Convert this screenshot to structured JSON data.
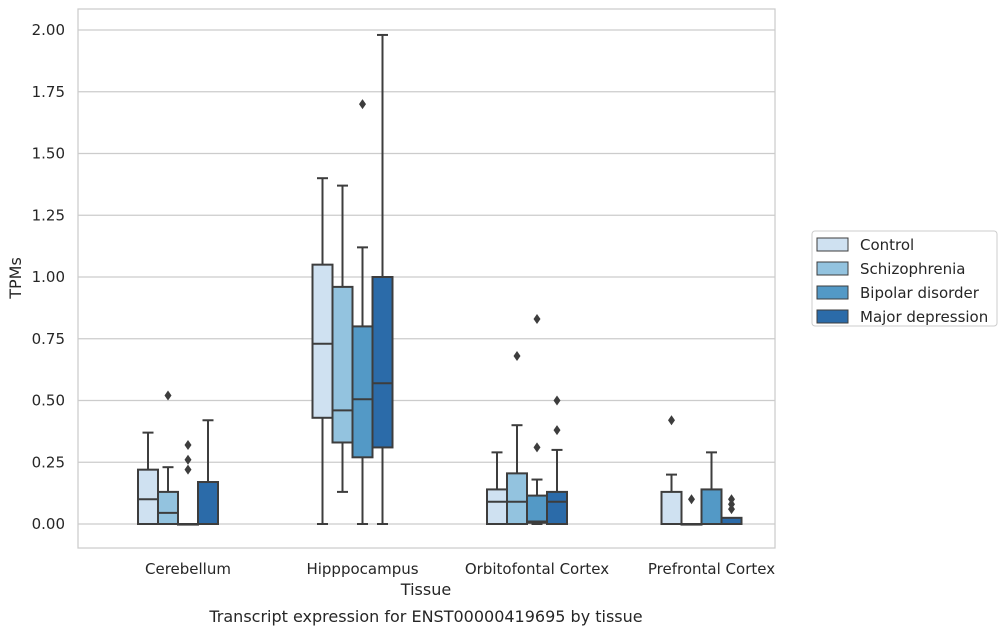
{
  "chart_data": {
    "type": "box",
    "caption": "Transcript expression for ENST00000419695 by tissue",
    "xlabel": "Tissue",
    "ylabel": "TPMs",
    "ylim": [
      -0.1,
      2.08
    ],
    "yticks": [
      "0.00",
      "0.25",
      "0.50",
      "0.75",
      "1.00",
      "1.25",
      "1.50",
      "1.75",
      "2.00"
    ],
    "grid": "horizontal",
    "legend_position": "right",
    "categories": [
      "Cerebellum",
      "Hipppocampus",
      "Orbitofontal Cortex",
      "Prefrontal Cortex"
    ],
    "series": [
      {
        "name": "Control",
        "color": "#cfe1f1",
        "boxes": [
          {
            "q1": 0.0,
            "median": 0.1,
            "q3": 0.22,
            "whisker_low": 0.0,
            "whisker_high": 0.37,
            "outliers": []
          },
          {
            "q1": 0.43,
            "median": 0.73,
            "q3": 1.05,
            "whisker_low": 0.0,
            "whisker_high": 1.4,
            "outliers": []
          },
          {
            "q1": 0.0,
            "median": 0.09,
            "q3": 0.14,
            "whisker_low": 0.0,
            "whisker_high": 0.29,
            "outliers": []
          },
          {
            "q1": 0.0,
            "median": 0.0,
            "q3": 0.13,
            "whisker_low": 0.0,
            "whisker_high": 0.2,
            "outliers": [
              0.42
            ]
          }
        ]
      },
      {
        "name": "Schizophrenia",
        "color": "#93c3df",
        "boxes": [
          {
            "q1": 0.0,
            "median": 0.045,
            "q3": 0.13,
            "whisker_low": 0.0,
            "whisker_high": 0.23,
            "outliers": [
              0.52
            ]
          },
          {
            "q1": 0.33,
            "median": 0.46,
            "q3": 0.96,
            "whisker_low": 0.13,
            "whisker_high": 1.37,
            "outliers": []
          },
          {
            "q1": 0.0,
            "median": 0.09,
            "q3": 0.205,
            "whisker_low": 0.0,
            "whisker_high": 0.4,
            "outliers": [
              0.68
            ]
          },
          {
            "q1": 0.0,
            "median": 0.0,
            "q3": 0.0,
            "whisker_low": 0.0,
            "whisker_high": 0.0,
            "outliers": [
              0.1
            ]
          }
        ]
      },
      {
        "name": "Bipolar disorder",
        "color": "#5399c6",
        "boxes": [
          {
            "q1": 0.0,
            "median": 0.0,
            "q3": 0.0,
            "whisker_low": 0.0,
            "whisker_high": 0.0,
            "outliers": [
              0.22,
              0.26,
              0.32
            ]
          },
          {
            "q1": 0.27,
            "median": 0.505,
            "q3": 0.8,
            "whisker_low": 0.0,
            "whisker_high": 1.12,
            "outliers": [
              1.7
            ]
          },
          {
            "q1": 0.005,
            "median": 0.01,
            "q3": 0.115,
            "whisker_low": 0.0,
            "whisker_high": 0.18,
            "outliers": [
              0.31,
              0.83
            ]
          },
          {
            "q1": 0.0,
            "median": 0.0,
            "q3": 0.14,
            "whisker_low": 0.0,
            "whisker_high": 0.29,
            "outliers": []
          }
        ]
      },
      {
        "name": "Major depression",
        "color": "#2b6ba9",
        "boxes": [
          {
            "q1": 0.0,
            "median": 0.0,
            "q3": 0.17,
            "whisker_low": 0.0,
            "whisker_high": 0.42,
            "outliers": []
          },
          {
            "q1": 0.31,
            "median": 0.57,
            "q3": 1.0,
            "whisker_low": 0.0,
            "whisker_high": 1.98,
            "outliers": []
          },
          {
            "q1": 0.0,
            "median": 0.09,
            "q3": 0.13,
            "whisker_low": 0.0,
            "whisker_high": 0.3,
            "outliers": [
              0.38,
              0.5
            ]
          },
          {
            "q1": 0.0,
            "median": 0.0,
            "q3": 0.025,
            "whisker_low": 0.0,
            "whisker_high": 0.025,
            "outliers": [
              0.06,
              0.08,
              0.1
            ]
          }
        ]
      }
    ]
  }
}
